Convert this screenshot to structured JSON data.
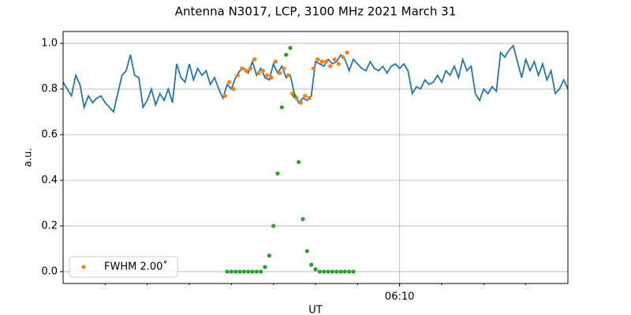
{
  "chart_data": {
    "type": "line",
    "title": "Antenna N3017, LCP, 3100 MHz 2021 March 31",
    "xlabel": "UT",
    "ylabel": "a.u.",
    "xlim": [
      362,
      374
    ],
    "xticks": [
      {
        "value": 370,
        "label": "06:10"
      }
    ],
    "xminorticks": [
      363,
      364,
      365,
      366,
      367,
      368,
      369,
      370,
      371,
      372,
      373
    ],
    "ylim": [
      -0.052,
      1.052
    ],
    "yticks": [
      {
        "value": 0,
        "label": "0.0"
      },
      0.2,
      0.4,
      0.6,
      0.8,
      {
        "value": 1,
        "label": "1.0"
      }
    ],
    "grid": true,
    "legend": "lower left",
    "series": [
      {
        "type": "line",
        "color": "#1f77b4",
        "x": [
          362.0,
          362.1,
          362.2,
          362.3,
          362.4,
          362.5,
          362.6,
          362.7,
          362.8,
          362.9,
          363.0,
          363.1,
          363.2,
          363.3,
          363.4,
          363.5,
          363.6,
          363.7,
          363.8,
          363.9,
          364.0,
          364.1,
          364.2,
          364.3,
          364.4,
          364.5,
          364.6,
          364.7,
          364.8,
          364.9,
          365.0,
          365.1,
          365.2,
          365.3,
          365.4,
          365.5,
          365.6,
          365.7,
          365.8,
          365.9,
          366.0,
          366.1,
          366.2,
          366.3,
          366.4,
          366.5,
          366.6,
          366.7,
          366.8,
          366.9,
          367.0,
          367.1,
          367.2,
          367.3,
          367.4,
          367.5,
          367.6,
          367.7,
          367.8,
          367.9,
          368.0,
          368.1,
          368.2,
          368.3,
          368.4,
          368.5,
          368.6,
          368.7,
          368.8,
          368.9,
          369.0,
          369.1,
          369.2,
          369.3,
          369.4,
          369.5,
          369.6,
          369.7,
          369.8,
          369.9,
          370.0,
          370.1,
          370.2,
          370.3,
          370.4,
          370.5,
          370.6,
          370.7,
          370.8,
          370.9,
          371.0,
          371.1,
          371.2,
          371.3,
          371.4,
          371.5,
          371.6,
          371.7,
          371.8,
          371.9,
          372.0,
          372.1,
          372.2,
          372.3,
          372.4,
          372.5,
          372.6,
          372.7,
          372.8,
          372.9,
          373.0,
          373.1,
          373.2,
          373.3,
          373.4,
          373.5,
          373.6,
          373.7,
          373.8,
          373.9,
          374.0
        ],
        "values": [
          0.83,
          0.8,
          0.77,
          0.86,
          0.82,
          0.72,
          0.77,
          0.74,
          0.76,
          0.77,
          0.74,
          0.72,
          0.7,
          0.78,
          0.86,
          0.88,
          0.95,
          0.86,
          0.85,
          0.72,
          0.75,
          0.8,
          0.73,
          0.78,
          0.75,
          0.8,
          0.74,
          0.91,
          0.85,
          0.83,
          0.91,
          0.84,
          0.89,
          0.86,
          0.88,
          0.82,
          0.85,
          0.8,
          0.76,
          0.82,
          0.8,
          0.85,
          0.88,
          0.89,
          0.87,
          0.92,
          0.86,
          0.89,
          0.85,
          0.84,
          0.91,
          0.87,
          0.9,
          0.85,
          0.86,
          0.78,
          0.74,
          0.76,
          0.75,
          0.77,
          0.92,
          0.91,
          0.9,
          0.93,
          0.91,
          0.92,
          0.95,
          0.93,
          0.88,
          0.93,
          0.91,
          0.89,
          0.88,
          0.92,
          0.89,
          0.88,
          0.9,
          0.87,
          0.9,
          0.91,
          0.89,
          0.91,
          0.88,
          0.78,
          0.81,
          0.8,
          0.84,
          0.82,
          0.83,
          0.86,
          0.83,
          0.88,
          0.86,
          0.9,
          0.85,
          0.93,
          0.88,
          0.9,
          0.78,
          0.75,
          0.8,
          0.78,
          0.81,
          0.79,
          0.96,
          0.94,
          0.97,
          0.99,
          0.92,
          0.85,
          0.93,
          0.88,
          0.92,
          0.86,
          0.91,
          0.84,
          0.88,
          0.78,
          0.8,
          0.84,
          0.8
        ]
      },
      {
        "type": "scatter",
        "name": "FWHM 2.00˚",
        "color": "#ff7f0e",
        "x": [
          365.85,
          365.95,
          366.05,
          366.15,
          366.25,
          366.35,
          366.45,
          366.55,
          366.65,
          366.75,
          366.85,
          366.95,
          367.05,
          367.15,
          367.25,
          367.35,
          367.45,
          367.55,
          367.65,
          367.75,
          367.85,
          367.95,
          368.05,
          368.15,
          368.25,
          368.35,
          368.45,
          368.55,
          368.65,
          368.75
        ],
        "values": [
          0.77,
          0.83,
          0.8,
          0.86,
          0.89,
          0.88,
          0.89,
          0.93,
          0.87,
          0.88,
          0.86,
          0.85,
          0.92,
          0.87,
          0.89,
          0.86,
          0.78,
          0.76,
          0.74,
          0.77,
          0.76,
          0.89,
          0.93,
          0.92,
          0.92,
          0.9,
          0.93,
          0.91,
          0.94,
          0.96
        ]
      },
      {
        "type": "scatter",
        "color": "#2ca02c",
        "x": [
          365.9,
          366.0,
          366.1,
          366.2,
          366.3,
          366.4,
          366.5,
          366.6,
          366.7,
          366.8,
          366.9,
          367.0,
          367.1,
          367.2,
          367.3,
          367.4,
          367.5,
          367.6,
          367.7,
          367.8,
          367.9,
          368.0,
          368.1,
          368.2,
          368.3,
          368.4,
          368.5,
          368.6,
          368.7,
          368.8,
          368.9
        ],
        "values": [
          0,
          0,
          0,
          0,
          0,
          0,
          0,
          0,
          0,
          0.02,
          0.07,
          0.2,
          0.43,
          0.72,
          0.95,
          0.98,
          0.77,
          0.48,
          0.23,
          0.09,
          0.03,
          0.01,
          0,
          0,
          0,
          0,
          0,
          0,
          0,
          0,
          0
        ]
      }
    ]
  }
}
